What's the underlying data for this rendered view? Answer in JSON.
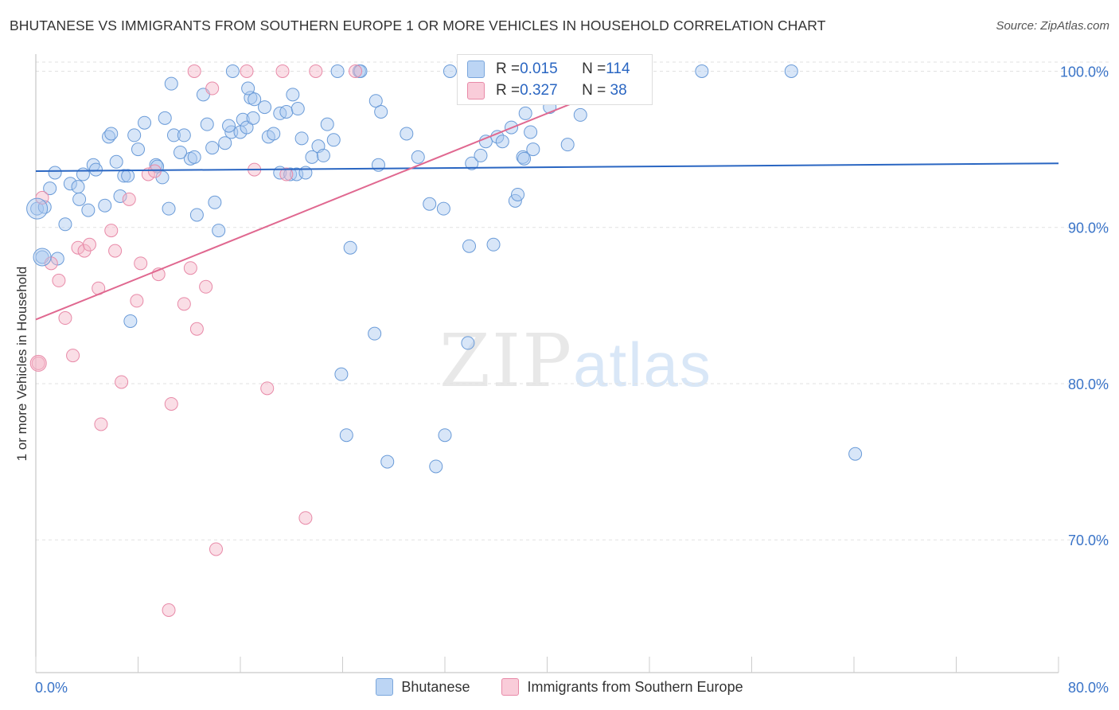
{
  "title": "BHUTANESE VS IMMIGRANTS FROM SOUTHERN EUROPE 1 OR MORE VEHICLES IN HOUSEHOLD CORRELATION CHART",
  "source": "Source: ZipAtlas.com",
  "watermark": {
    "zip": "ZIP",
    "atlas": "atlas"
  },
  "legend_top": {
    "rows": [
      {
        "r_label": "R = ",
        "r_value": "0.015",
        "n_label": "N = ",
        "n_value": "114",
        "color": "#a8c8f0"
      },
      {
        "r_label": "R = ",
        "r_value": "0.327",
        "n_label": "N = ",
        "n_value": " 38",
        "color": "#f5b5c8"
      }
    ]
  },
  "chart_data": {
    "type": "scatter",
    "ylabel": "1 or more Vehicles in Household",
    "xlim": [
      0,
      80
    ],
    "ylim": [
      61.5,
      101.5
    ],
    "x_ticks": [
      "0.0%",
      "80.0%"
    ],
    "y_ticks": [
      {
        "value": 100,
        "label": "100.0%"
      },
      {
        "value": 90,
        "label": "90.0%"
      },
      {
        "value": 80,
        "label": "80.0%"
      },
      {
        "value": 70,
        "label": "70.0%"
      }
    ],
    "grid": true,
    "series": [
      {
        "name": "Bhutanese",
        "color": "#a8c8f0",
        "stroke": "#6a9bd8",
        "trend_color": "#2a66c2",
        "trend": {
          "x0": 0,
          "y0": 93.6,
          "x1": 80,
          "y1": 94.1
        },
        "points": [
          [
            0.1,
            91.2
          ],
          [
            0.5,
            88.1
          ],
          [
            0.7,
            91.3
          ],
          [
            1.1,
            92.5
          ],
          [
            1.5,
            93.5
          ],
          [
            1.7,
            88
          ],
          [
            2.3,
            90.2
          ],
          [
            2.7,
            92.8
          ],
          [
            3.3,
            92.6
          ],
          [
            3.4,
            91.8
          ],
          [
            3.7,
            93.4
          ],
          [
            4.1,
            91.1
          ],
          [
            4.5,
            94
          ],
          [
            4.7,
            93.7
          ],
          [
            5.4,
            91.4
          ],
          [
            5.7,
            95.8
          ],
          [
            5.9,
            96
          ],
          [
            6.3,
            94.2
          ],
          [
            6.6,
            92
          ],
          [
            6.9,
            93.3
          ],
          [
            7.2,
            93.3
          ],
          [
            7.7,
            95.9
          ],
          [
            7.4,
            84
          ],
          [
            8,
            95
          ],
          [
            8.5,
            96.7
          ],
          [
            9.4,
            94
          ],
          [
            9.5,
            93.9
          ],
          [
            9.9,
            93.2
          ],
          [
            10.1,
            97
          ],
          [
            10.4,
            91.2
          ],
          [
            10.6,
            99.2
          ],
          [
            10.8,
            95.9
          ],
          [
            11.6,
            95.9
          ],
          [
            12.1,
            94.4
          ],
          [
            12.4,
            94.5
          ],
          [
            12.6,
            90.8
          ],
          [
            13.1,
            98.5
          ],
          [
            13.4,
            96.6
          ],
          [
            13.8,
            95.1
          ],
          [
            14,
            91.6
          ],
          [
            14.3,
            89.8
          ],
          [
            14.8,
            95.4
          ],
          [
            15.3,
            96.1
          ],
          [
            15.4,
            100
          ],
          [
            16,
            96.1
          ],
          [
            16.2,
            96.9
          ],
          [
            16.5,
            96.4
          ],
          [
            16.8,
            98.3
          ],
          [
            17,
            97
          ],
          [
            17.1,
            98.2
          ],
          [
            17.9,
            97.7
          ],
          [
            18.2,
            95.8
          ],
          [
            18.6,
            96
          ],
          [
            19.1,
            97.3
          ],
          [
            19.6,
            97.4
          ],
          [
            19.1,
            93.5
          ],
          [
            19.9,
            93.4
          ],
          [
            20.1,
            98.5
          ],
          [
            20.4,
            93.4
          ],
          [
            20.5,
            97.6
          ],
          [
            20.8,
            95.7
          ],
          [
            21.1,
            93.5
          ],
          [
            21.6,
            94.5
          ],
          [
            22.1,
            95.2
          ],
          [
            22.5,
            94.6
          ],
          [
            22.8,
            96.6
          ],
          [
            23.3,
            95.6
          ],
          [
            23.6,
            100
          ],
          [
            23.9,
            80.6
          ],
          [
            24.3,
            76.7
          ],
          [
            24.6,
            88.7
          ],
          [
            25.3,
            100
          ],
          [
            25.4,
            100
          ],
          [
            26.5,
            83.2
          ],
          [
            26.6,
            98.1
          ],
          [
            26.8,
            94
          ],
          [
            27,
            97.4
          ],
          [
            27.5,
            75
          ],
          [
            29,
            96
          ],
          [
            29.9,
            94.5
          ],
          [
            30.8,
            91.5
          ],
          [
            31.3,
            74.7
          ],
          [
            31.9,
            91.2
          ],
          [
            32,
            76.7
          ],
          [
            32.4,
            100
          ],
          [
            33.8,
            82.6
          ],
          [
            33.9,
            88.8
          ],
          [
            34.1,
            94.1
          ],
          [
            34.8,
            94.6
          ],
          [
            35.2,
            95.5
          ],
          [
            35.8,
            88.9
          ],
          [
            36.1,
            95.8
          ],
          [
            36.5,
            95.5
          ],
          [
            37.2,
            96.4
          ],
          [
            37.5,
            91.7
          ],
          [
            37.7,
            92.1
          ],
          [
            38.1,
            94.5
          ],
          [
            38.2,
            94.4
          ],
          [
            38.7,
            96.1
          ],
          [
            38.9,
            95
          ],
          [
            40.2,
            97.7
          ],
          [
            40.8,
            100
          ],
          [
            41.6,
            95.3
          ],
          [
            42.1,
            100
          ],
          [
            42.6,
            97.2
          ],
          [
            43,
            100
          ],
          [
            43.3,
            100
          ],
          [
            52.1,
            100
          ],
          [
            59.1,
            100
          ],
          [
            64.1,
            75.5
          ],
          [
            38.3,
            97.3
          ],
          [
            15.1,
            96.5
          ],
          [
            11.3,
            94.8
          ],
          [
            16.6,
            98.9
          ]
        ]
      },
      {
        "name": "Immigrants from Southern Europe",
        "color": "#f5b5c8",
        "stroke": "#e88aa8",
        "trend_color": "#e06890",
        "trend": {
          "x0": 0,
          "y0": 84.1,
          "x1": 48.2,
          "y1": 100
        },
        "points": [
          [
            0.2,
            81.3
          ],
          [
            0.5,
            91.9
          ],
          [
            1.2,
            87.7
          ],
          [
            1.8,
            86.6
          ],
          [
            2.3,
            84.2
          ],
          [
            2.9,
            81.8
          ],
          [
            3.3,
            88.7
          ],
          [
            3.8,
            88.5
          ],
          [
            4.2,
            88.9
          ],
          [
            4.9,
            86.1
          ],
          [
            5.1,
            77.4
          ],
          [
            5.9,
            89.8
          ],
          [
            6.2,
            88.5
          ],
          [
            6.7,
            80.1
          ],
          [
            7.3,
            91.8
          ],
          [
            7.9,
            85.3
          ],
          [
            8.2,
            87.7
          ],
          [
            8.8,
            93.4
          ],
          [
            9.3,
            93.6
          ],
          [
            9.6,
            87
          ],
          [
            10.4,
            65.5
          ],
          [
            10.6,
            78.7
          ],
          [
            11.6,
            85.1
          ],
          [
            12.1,
            87.4
          ],
          [
            12.4,
            100
          ],
          [
            12.6,
            83.5
          ],
          [
            13.3,
            86.2
          ],
          [
            13.8,
            98.9
          ],
          [
            14.1,
            69.4
          ],
          [
            16.5,
            100
          ],
          [
            17.1,
            93.7
          ],
          [
            18.1,
            79.7
          ],
          [
            19.3,
            100
          ],
          [
            19.6,
            93.4
          ],
          [
            21.1,
            71.4
          ],
          [
            21.9,
            100
          ],
          [
            25,
            100
          ],
          [
            38.5,
            100
          ]
        ]
      }
    ]
  },
  "bottom_legend": [
    {
      "label": "Bhutanese",
      "color": "#a8c8f0"
    },
    {
      "label": "Immigrants from Southern Europe",
      "color": "#f5b5c8"
    }
  ]
}
